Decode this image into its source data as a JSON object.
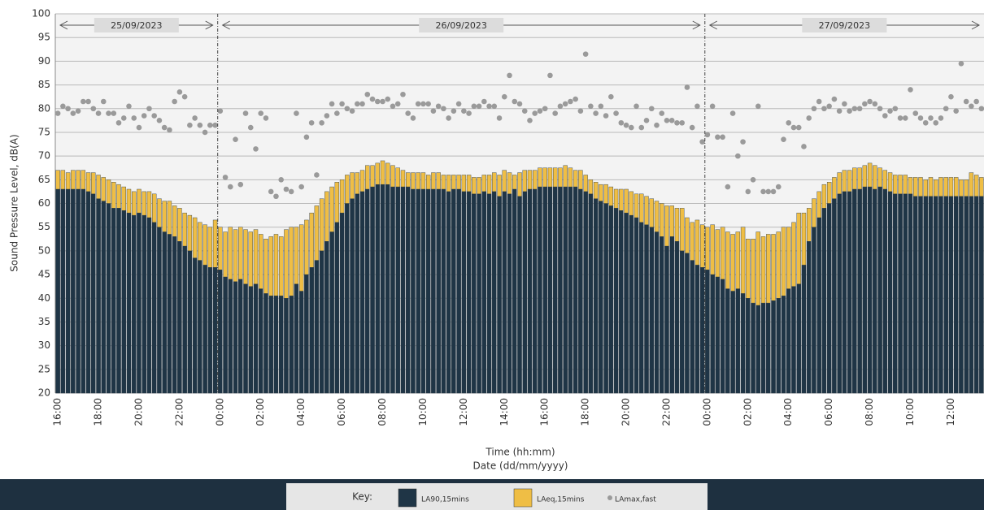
{
  "chart_data": {
    "type": "bar",
    "y_axis_label": "Sound Pressure Level, dB(A)",
    "x_axis_label": "Time (hh:mm)",
    "x_axis_label_2": "Date (dd/mm/yyyy)",
    "dates": [
      "25/09/2023",
      "26/09/2023",
      "27/09/2023"
    ],
    "legend_title": "Key:",
    "ylim": [
      20,
      100
    ],
    "yticks": [
      20,
      25,
      30,
      35,
      40,
      45,
      50,
      55,
      60,
      65,
      70,
      75,
      80,
      85,
      90,
      95,
      100
    ],
    "grid": true,
    "categories": [
      "16:00",
      null,
      null,
      null,
      null,
      null,
      null,
      null,
      "18:00",
      null,
      null,
      null,
      null,
      null,
      null,
      null,
      "20:00",
      null,
      null,
      null,
      null,
      null,
      null,
      null,
      "22:00",
      null,
      null,
      null,
      null,
      null,
      null,
      null,
      "00:00",
      null,
      null,
      null,
      null,
      null,
      null,
      null,
      "02:00",
      null,
      null,
      null,
      null,
      null,
      null,
      null,
      "04:00",
      null,
      null,
      null,
      null,
      null,
      null,
      null,
      "06:00",
      null,
      null,
      null,
      null,
      null,
      null,
      null,
      "08:00",
      null,
      null,
      null,
      null,
      null,
      null,
      null,
      "10:00",
      null,
      null,
      null,
      null,
      null,
      null,
      null,
      "12:00",
      null,
      null,
      null,
      null,
      null,
      null,
      null,
      "14:00",
      null,
      null,
      null,
      null,
      null,
      null,
      null,
      "16:00",
      null,
      null,
      null,
      null,
      null,
      null,
      null,
      "18:00",
      null,
      null,
      null,
      null,
      null,
      null,
      null,
      "20:00",
      null,
      null,
      null,
      null,
      null,
      null,
      null,
      "22:00",
      null,
      null,
      null,
      null,
      null,
      null,
      null,
      "00:00",
      null,
      null,
      null,
      null,
      null,
      null,
      null,
      "02:00",
      null,
      null,
      null,
      null,
      null,
      null,
      null,
      "04:00",
      null,
      null,
      null,
      null,
      null,
      null,
      null,
      "06:00",
      null,
      null,
      null,
      null,
      null,
      null,
      null,
      "08:00",
      null,
      null,
      null,
      null,
      null,
      null,
      null,
      "10:00",
      null,
      null,
      null,
      null,
      null,
      null,
      null,
      "12:00",
      null,
      null,
      null,
      null,
      null,
      null
    ],
    "series": [
      {
        "name": "LAeq,15mins",
        "color": "#efbe45",
        "kind": "bar",
        "values": [
          67,
          67,
          66.5,
          67,
          67,
          67,
          66.5,
          66.5,
          66,
          65.5,
          65,
          64.5,
          64,
          63.5,
          63,
          62.5,
          63,
          62.5,
          62.5,
          62,
          61,
          60.5,
          60.5,
          59.5,
          59,
          58,
          57.5,
          57,
          56,
          55.5,
          55,
          56.5,
          55,
          54,
          55,
          54.5,
          55,
          54.5,
          54,
          54.5,
          53.5,
          52.5,
          53,
          53.5,
          53,
          54.5,
          55,
          55,
          55.5,
          56.5,
          58,
          59.5,
          61,
          62.5,
          63.5,
          64.5,
          65,
          66,
          66.5,
          66.5,
          67,
          68,
          68,
          68.5,
          69,
          68.5,
          68,
          67.5,
          67,
          66.5,
          66.5,
          66.5,
          66.5,
          66,
          66.5,
          66.5,
          66,
          66,
          66,
          66,
          66,
          66,
          65.5,
          65.5,
          66,
          66,
          66.5,
          66,
          67,
          66.5,
          66,
          66.5,
          67,
          67,
          67,
          67.5,
          67.5,
          67.5,
          67.5,
          67.5,
          68,
          67.5,
          67,
          67,
          66,
          65,
          64.5,
          64,
          64,
          63.5,
          63,
          63,
          63,
          62.5,
          62,
          62,
          61.5,
          61,
          60.5,
          60,
          59.5,
          59.5,
          59,
          59,
          57,
          56,
          56.5,
          55.5,
          55,
          55.5,
          54.5,
          55,
          54,
          53.5,
          54,
          55,
          52.5,
          52.5,
          54,
          53,
          53.5,
          53.5,
          54,
          55,
          55,
          56,
          58,
          58,
          59,
          61,
          62.5,
          64,
          64.5,
          65.5,
          66.5,
          67,
          67,
          67.5,
          67.5,
          68,
          68.5,
          68,
          67.5,
          67,
          66.5,
          66,
          66,
          66,
          65.5,
          65.5,
          65.5,
          65,
          65.5,
          65,
          65.5,
          65.5,
          65.5,
          65.5,
          65,
          65,
          66.5,
          66,
          65.5
        ]
      },
      {
        "name": "LA90,15mins",
        "color": "#1f3546",
        "kind": "bar",
        "values": [
          63,
          63,
          63,
          63,
          63,
          63,
          62.5,
          62,
          61,
          60.5,
          60,
          59,
          59,
          58.5,
          58,
          57.5,
          58,
          57.5,
          57,
          56,
          55,
          54,
          53.5,
          53,
          52,
          51,
          50,
          48.5,
          48,
          47,
          46.5,
          46.5,
          46,
          44.5,
          44,
          43.5,
          44,
          43,
          42.5,
          43,
          42,
          41,
          40.5,
          40.5,
          40.5,
          40,
          40.5,
          43,
          41.5,
          45,
          46.5,
          48,
          50,
          52,
          54,
          56,
          58,
          60,
          61,
          62,
          62.5,
          63,
          63.5,
          64,
          64,
          64,
          63.5,
          63.5,
          63.5,
          63.5,
          63,
          63,
          63,
          63,
          63,
          63,
          63,
          62.5,
          63,
          63,
          62.5,
          62.5,
          62,
          62,
          62.5,
          62,
          62.5,
          61.5,
          62.5,
          62,
          63,
          61.5,
          62.5,
          63,
          63,
          63.5,
          63.5,
          63.5,
          63.5,
          63.5,
          63.5,
          63.5,
          63.5,
          63,
          62.5,
          62,
          61,
          60.5,
          60,
          59.5,
          59,
          58.5,
          58,
          57.5,
          57,
          56,
          55.5,
          55,
          54,
          53,
          51,
          53,
          52,
          50,
          49.5,
          48,
          47,
          46.5,
          46,
          45,
          44.5,
          44,
          42,
          41.5,
          42,
          41,
          40,
          39,
          38.5,
          39,
          39,
          39.5,
          40,
          40.5,
          42,
          42.5,
          43,
          47,
          52,
          55,
          57,
          59,
          60,
          61,
          62,
          62.5,
          62.5,
          63,
          63,
          63.5,
          63.5,
          63,
          63.5,
          63,
          62.5,
          62,
          62,
          62,
          62,
          61.5,
          61.5,
          61.5,
          61.5,
          61.5,
          61.5,
          61.5,
          61.5,
          61.5,
          61.5,
          61.5,
          61.5,
          61.5,
          61.5
        ]
      },
      {
        "name": "LAmax,fast",
        "color": "#9a9a9a",
        "kind": "dot",
        "values": [
          79,
          80.5,
          80,
          79,
          79.5,
          81.5,
          81.5,
          80,
          79,
          81.5,
          79,
          79,
          77,
          78,
          80.5,
          78,
          76,
          78.5,
          80,
          78.5,
          77.5,
          76,
          75.5,
          81.5,
          83.5,
          82.5,
          76.5,
          78,
          76.5,
          75,
          76.5,
          76.5,
          79.5,
          65.5,
          63.5,
          73.5,
          64,
          79,
          76,
          71.5,
          79,
          78,
          62.5,
          61.5,
          65,
          63,
          62.5,
          79,
          63.5,
          74,
          77,
          66,
          77,
          78.5,
          81,
          79,
          81,
          80,
          79.5,
          81,
          81,
          83,
          82,
          81.5,
          81.5,
          82,
          80.5,
          81,
          83,
          79,
          78,
          81,
          81,
          81,
          79.5,
          80.5,
          80,
          78,
          79.5,
          81,
          79.5,
          79,
          80.5,
          80.5,
          81.5,
          80.5,
          80.5,
          78,
          82.5,
          87,
          81.5,
          81,
          79.5,
          77.5,
          79,
          79.5,
          80,
          87,
          79,
          80.5,
          81,
          81.5,
          82,
          79.5,
          91.5,
          80.5,
          79,
          80.5,
          78.5,
          82.5,
          79,
          77,
          76.5,
          76,
          80.5,
          76,
          77.5,
          80,
          76.5,
          79,
          77.5,
          77.5,
          77,
          77,
          84.5,
          76,
          80.5,
          73,
          74.5,
          80.5,
          74,
          74,
          63.5,
          79,
          70,
          73,
          62.5,
          65,
          80.5,
          62.5,
          62.5,
          62.5,
          63.5,
          73.5,
          77,
          76,
          76,
          72,
          78,
          80,
          81.5,
          80,
          80.5,
          82,
          79.5,
          81,
          79.5,
          80,
          80,
          81,
          81.5,
          81,
          80,
          78.5,
          79.5,
          80,
          78,
          78,
          84,
          79,
          78,
          77,
          78,
          77,
          78,
          80,
          82.5,
          79.5,
          89.5,
          81.5,
          80.5,
          81.5,
          80
        ]
      }
    ]
  }
}
